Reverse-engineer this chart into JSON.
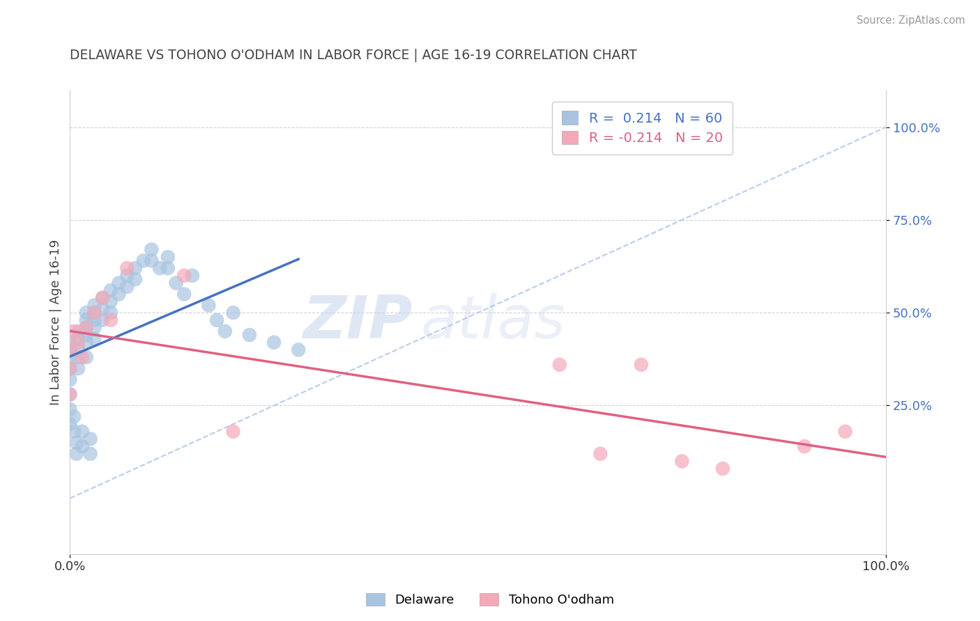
{
  "title": "DELAWARE VS TOHONO O'ODHAM IN LABOR FORCE | AGE 16-19 CORRELATION CHART",
  "source_text": "Source: ZipAtlas.com",
  "ylabel": "In Labor Force | Age 16-19",
  "r_blue": 0.214,
  "n_blue": 60,
  "r_pink": -0.214,
  "n_pink": 20,
  "blue_color": "#a8c4e0",
  "blue_line_color": "#4472c4",
  "pink_color": "#f4a8b8",
  "pink_line_color": "#e06080",
  "ref_line_color": "#b0c8e8",
  "legend_label_blue": "Delaware",
  "legend_label_pink": "Tohono O'odham",
  "watermark_zip": "ZIP",
  "watermark_atlas": "atlas",
  "blue_x": [
    0.0,
    0.0,
    0.0,
    0.0,
    0.0,
    0.0,
    0.0,
    0.0,
    1.0,
    1.0,
    1.0,
    1.0,
    1.0,
    2.0,
    2.0,
    2.0,
    2.0,
    2.0,
    2.0,
    3.0,
    3.0,
    3.0,
    3.0,
    3.0,
    4.0,
    4.0,
    4.0,
    5.0,
    5.0,
    5.0,
    6.0,
    6.0,
    7.0,
    7.0,
    8.0,
    8.0,
    9.0,
    10.0,
    10.0,
    11.0,
    12.0,
    12.0,
    13.0,
    14.0,
    15.0,
    17.0,
    18.0,
    19.0,
    20.0,
    22.0,
    25.0,
    28.0,
    0.5,
    0.5,
    0.8,
    0.8,
    1.5,
    1.5,
    2.5,
    2.5
  ],
  "blue_y": [
    42.0,
    40.0,
    38.0,
    35.0,
    32.0,
    28.0,
    24.0,
    20.0,
    45.0,
    43.0,
    40.0,
    38.0,
    35.0,
    50.0,
    48.0,
    46.0,
    44.0,
    42.0,
    38.0,
    52.0,
    50.0,
    48.0,
    46.0,
    43.0,
    54.0,
    51.0,
    48.0,
    56.0,
    53.0,
    50.0,
    58.0,
    55.0,
    60.0,
    57.0,
    62.0,
    59.0,
    64.0,
    67.0,
    64.0,
    62.0,
    65.0,
    62.0,
    58.0,
    55.0,
    60.0,
    52.0,
    48.0,
    45.0,
    50.0,
    44.0,
    42.0,
    40.0,
    22.0,
    18.0,
    15.0,
    12.0,
    18.0,
    14.0,
    16.0,
    12.0
  ],
  "pink_x": [
    0.0,
    0.0,
    0.0,
    0.5,
    1.0,
    1.5,
    2.0,
    3.0,
    4.0,
    5.0,
    7.0,
    14.0,
    20.0,
    60.0,
    65.0,
    70.0,
    75.0,
    80.0,
    90.0,
    95.0
  ],
  "pink_y": [
    40.0,
    35.0,
    28.0,
    45.0,
    42.0,
    38.0,
    46.0,
    50.0,
    54.0,
    48.0,
    62.0,
    60.0,
    18.0,
    36.0,
    12.0,
    36.0,
    10.0,
    8.0,
    14.0,
    18.0
  ],
  "xlim": [
    0.0,
    100.0
  ],
  "ylim": [
    -15.0,
    110.0
  ],
  "right_yticks": [
    25.0,
    50.0,
    75.0,
    100.0
  ],
  "right_ytick_labels": [
    "25.0%",
    "50.0%",
    "75.0%",
    "100.0%"
  ],
  "xtick_labels": [
    "0.0%",
    "100.0%"
  ],
  "xtick_positions": [
    0.0,
    100.0
  ],
  "grid_color": "#cccccc",
  "background_color": "#ffffff",
  "title_color": "#444444",
  "source_color": "#999999"
}
